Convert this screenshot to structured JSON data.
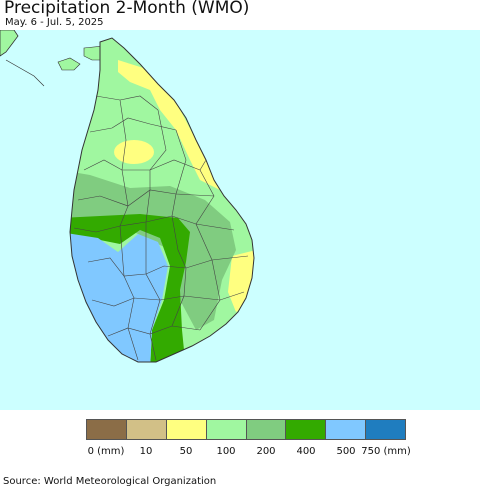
{
  "title": "Precipitation 2-Month (WMO)",
  "subtitle": "May. 6 - Jul. 5, 2025",
  "legend": {
    "colors": [
      "#8b6d47",
      "#d2c087",
      "#ffff80",
      "#a0f7a0",
      "#80cc80",
      "#33aa00",
      "#80c8ff",
      "#1f7dbf"
    ],
    "labels": [
      "0 (mm)",
      "10",
      "50",
      "100",
      "200",
      "400",
      "500",
      "750 (mm)"
    ]
  },
  "source": "Source: World Meteorological Organization",
  "colors": {
    "ocean": "#ccffff",
    "boundary": "#333333"
  }
}
